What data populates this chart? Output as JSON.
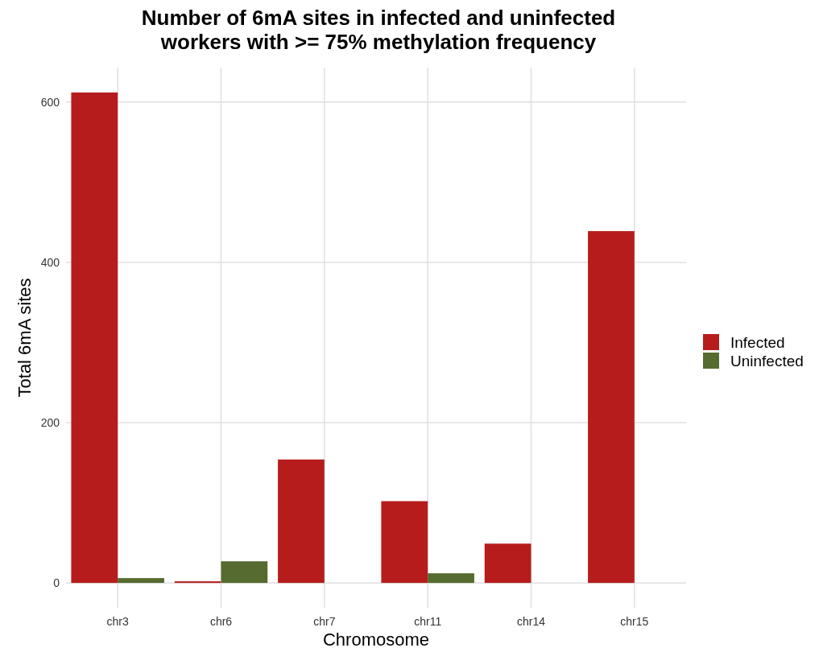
{
  "chart_data": {
    "type": "bar",
    "title": "Number of 6mA sites in infected and uninfected\nworkers with >= 75% methylation frequency",
    "xlabel": "Chromosome",
    "ylabel": "Total 6mA sites",
    "categories": [
      "chr3",
      "chr6",
      "chr7",
      "chr11",
      "chr14",
      "chr15"
    ],
    "series": [
      {
        "name": "Infected",
        "color": "#b71c1c",
        "values": [
          612,
          2,
          154,
          102,
          49,
          439
        ]
      },
      {
        "name": "Uninfected",
        "color": "#556b2f",
        "values": [
          6,
          27,
          null,
          12,
          null,
          null
        ]
      }
    ],
    "ylim": [
      -31,
      643
    ],
    "yticks": [
      0,
      200,
      400,
      600
    ],
    "grid": true,
    "legend": "right"
  }
}
